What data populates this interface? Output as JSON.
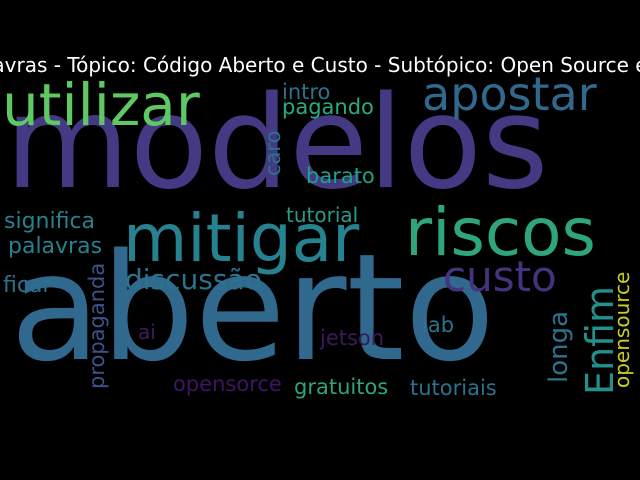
{
  "title": "avras - Tópico: Código Aberto e Custo - Subtópico: Open Source e",
  "words": [
    {
      "text": "modelos",
      "color": "#443983",
      "orientation": "horizontal"
    },
    {
      "text": "aberto",
      "color": "#31688e",
      "orientation": "horizontal"
    },
    {
      "text": "riscos",
      "color": "#2ea57a",
      "orientation": "horizontal"
    },
    {
      "text": "mitigar",
      "color": "#26828e",
      "orientation": "horizontal"
    },
    {
      "text": "utilizar",
      "color": "#5ec962",
      "orientation": "horizontal"
    },
    {
      "text": "apostar",
      "color": "#31688e",
      "orientation": "horizontal"
    },
    {
      "text": "custo",
      "color": "#46337e",
      "orientation": "horizontal"
    },
    {
      "text": "Enfim",
      "color": "#21918c",
      "orientation": "vertical"
    },
    {
      "text": "discussão",
      "color": "#2c728e",
      "orientation": "horizontal"
    },
    {
      "text": "longa",
      "color": "#2c728e",
      "orientation": "vertical"
    },
    {
      "text": "intro",
      "color": "#2c728e",
      "orientation": "horizontal"
    },
    {
      "text": "pagando",
      "color": "#27ad81",
      "orientation": "horizontal"
    },
    {
      "text": "caro",
      "color": "#2c728e",
      "orientation": "vertical"
    },
    {
      "text": "barato",
      "color": "#1fa187",
      "orientation": "horizontal"
    },
    {
      "text": "tutorial",
      "color": "#2a9a89",
      "orientation": "horizontal"
    },
    {
      "text": "significa",
      "color": "#26828e",
      "orientation": "horizontal"
    },
    {
      "text": "palavras",
      "color": "#26828e",
      "orientation": "horizontal"
    },
    {
      "text": "ficar",
      "color": "#2c728e",
      "orientation": "horizontal"
    },
    {
      "text": "propaganda",
      "color": "#3b528b",
      "orientation": "vertical"
    },
    {
      "text": "ai",
      "color": "#3e1d5c",
      "orientation": "horizontal"
    },
    {
      "text": "jetson",
      "color": "#3a1a5e",
      "orientation": "horizontal"
    },
    {
      "text": "lab",
      "color": "#2c728e",
      "orientation": "horizontal"
    },
    {
      "text": "opensorce",
      "color": "#3f1464",
      "orientation": "horizontal"
    },
    {
      "text": "gratuitos",
      "color": "#2ea57a",
      "orientation": "horizontal"
    },
    {
      "text": "tutoriais",
      "color": "#2c728e",
      "orientation": "horizontal"
    },
    {
      "text": "opensource",
      "color": "#c7cf22",
      "orientation": "vertical"
    }
  ]
}
